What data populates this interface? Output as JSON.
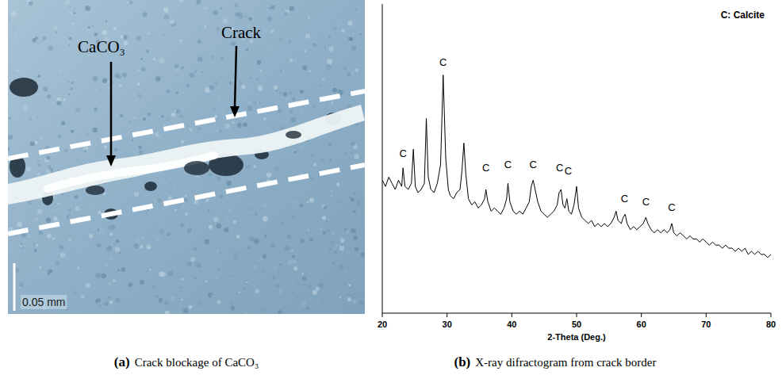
{
  "chart_data": {
    "type": "line",
    "panel_label": "(b)",
    "caption": "X-ray difractogram from crack border",
    "x_label": "2-Theta (Deg.)",
    "key_text": "C: Calcite",
    "xlim": [
      20,
      80
    ],
    "xticks": [
      20,
      30,
      40,
      50,
      60,
      70,
      80
    ],
    "ylim": [
      0,
      100
    ],
    "tick_labels": "x",
    "grid": false,
    "color": "#000000",
    "x": [
      20,
      20.5,
      21,
      21.5,
      22,
      22.5,
      23,
      23.2,
      23.5,
      24,
      24.5,
      24.8,
      25.1,
      25.5,
      26,
      26.5,
      26.8,
      27.1,
      27.5,
      28,
      28.5,
      29,
      29.4,
      29.8,
      30.2,
      30.5,
      31,
      31.5,
      32,
      32.3,
      32.6,
      32.9,
      33.3,
      33.8,
      34.3,
      34.8,
      35.3,
      35.8,
      36,
      36.3,
      36.8,
      37.3,
      37.8,
      38.3,
      38.8,
      39.2,
      39.4,
      39.7,
      40.2,
      40.7,
      41.2,
      41.7,
      42.2,
      42.7,
      43,
      43.3,
      43.6,
      44,
      44.5,
      45,
      45.5,
      46,
      46.5,
      47,
      47.3,
      47.6,
      47.9,
      48.2,
      48.5,
      48.8,
      49.2,
      49.6,
      50,
      50.3,
      50.8,
      51.3,
      51.8,
      52.3,
      52.8,
      53.3,
      53.8,
      54.3,
      54.8,
      55.3,
      55.8,
      56.1,
      56.4,
      56.9,
      57.2,
      57.5,
      57.8,
      58.3,
      58.8,
      59.3,
      59.8,
      60.3,
      60.7,
      61,
      61.5,
      62,
      62.5,
      63,
      63.5,
      64,
      64.4,
      64.7,
      65,
      65.5,
      66,
      66.5,
      67,
      67.5,
      68,
      68.5,
      69,
      69.5,
      70,
      70.5,
      71,
      71.5,
      72,
      72.5,
      73,
      73.5,
      74,
      74.5,
      75,
      75.5,
      76,
      76.5,
      77,
      77.5,
      78,
      78.5,
      79,
      79.5,
      80
    ],
    "values": [
      43,
      41,
      44,
      42,
      40,
      43,
      41,
      47,
      41,
      40,
      42,
      53,
      41,
      39,
      40,
      42,
      63,
      44,
      40,
      39,
      42,
      48,
      77,
      50,
      40,
      38,
      37,
      39,
      40,
      46,
      55,
      45,
      37,
      35,
      36,
      34,
      35,
      37,
      40,
      36,
      33,
      34,
      33,
      32,
      34,
      37,
      42,
      36,
      33,
      32,
      33,
      32,
      34,
      36,
      41,
      43,
      40,
      36,
      33,
      32,
      31,
      32,
      33,
      35,
      39,
      40,
      35,
      34,
      37,
      33,
      32,
      35,
      41,
      34,
      31,
      30,
      29,
      30,
      28,
      29,
      28,
      29,
      28,
      29,
      31,
      33,
      30,
      29,
      31,
      32,
      29,
      27,
      28,
      27,
      28,
      29,
      31,
      29,
      27,
      26,
      27,
      26,
      27,
      26,
      27,
      29,
      26,
      25,
      26,
      25,
      24,
      25,
      24,
      24,
      23,
      24,
      23,
      22,
      23,
      22,
      22,
      21,
      22,
      21,
      21,
      20,
      21,
      20,
      21,
      19,
      20,
      19,
      20,
      19,
      19,
      18,
      19
    ],
    "annotations": [
      {
        "text": "C",
        "x": 23.2,
        "y": 50.5
      },
      {
        "text": "C",
        "x": 29.4,
        "y": 80
      },
      {
        "text": "C",
        "x": 36.0,
        "y": 46
      },
      {
        "text": "C",
        "x": 39.4,
        "y": 47
      },
      {
        "text": "C",
        "x": 43.3,
        "y": 47
      },
      {
        "text": "C",
        "x": 47.4,
        "y": 46
      },
      {
        "text": "C",
        "x": 48.7,
        "y": 45
      },
      {
        "text": "C",
        "x": 57.4,
        "y": 36
      },
      {
        "text": "C",
        "x": 60.7,
        "y": 35
      },
      {
        "text": "C",
        "x": 64.7,
        "y": 33
      }
    ]
  },
  "photo": {
    "panel_label": "(a)",
    "caption": "Crack blockage of CaCO₃",
    "label_calcite": "CaCO₃",
    "label_crack": "Crack",
    "scale_bar": "0.05 mm"
  }
}
